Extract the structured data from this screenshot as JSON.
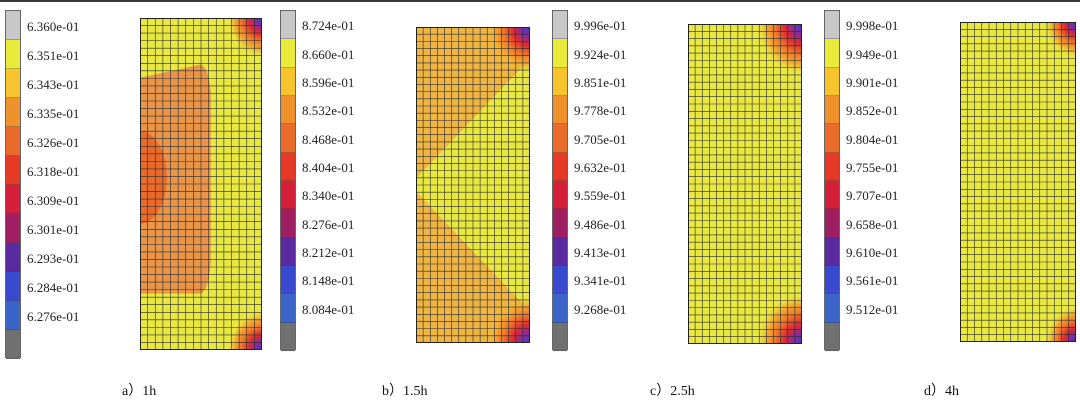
{
  "panels": [
    {
      "id": "a",
      "caption": "a）1h",
      "legend": [
        "6.360e-01",
        "6.351e-01",
        "6.343e-01",
        "6.335e-01",
        "6.326e-01",
        "6.318e-01",
        "6.309e-01",
        "6.301e-01",
        "6.293e-01",
        "6.284e-01",
        "6.276e-01"
      ],
      "pattern": "center-orange"
    },
    {
      "id": "b",
      "caption": "b）1.5h",
      "legend": [
        "8.724e-01",
        "8.660e-01",
        "8.596e-01",
        "8.532e-01",
        "8.468e-01",
        "8.404e-01",
        "8.340e-01",
        "8.276e-01",
        "8.212e-01",
        "8.148e-01",
        "8.084e-01"
      ],
      "pattern": "v-shape"
    },
    {
      "id": "c",
      "caption": "c）2.5h",
      "legend": [
        "9.996e-01",
        "9.924e-01",
        "9.851e-01",
        "9.778e-01",
        "9.705e-01",
        "9.632e-01",
        "9.559e-01",
        "9.486e-01",
        "9.413e-01",
        "9.341e-01",
        "9.268e-01"
      ],
      "pattern": "corners"
    },
    {
      "id": "d",
      "caption": "d）4h",
      "legend": [
        "9.998e-01",
        "9.949e-01",
        "9.901e-01",
        "9.852e-01",
        "9.804e-01",
        "9.755e-01",
        "9.707e-01",
        "9.658e-01",
        "9.610e-01",
        "9.561e-01",
        "9.512e-01"
      ],
      "pattern": "corners-small"
    }
  ],
  "colors": {
    "scale": [
      "#c8c8c8",
      "#eaea3a",
      "#f6c42c",
      "#f0922c",
      "#ea6a2a",
      "#e63a26",
      "#d41e3a",
      "#a01e62",
      "#5a2aa0",
      "#3a4ad0",
      "#3a64c8",
      "#707070"
    ],
    "mesh": "#2a2a2a",
    "yellow": "#e8e840",
    "orange": "#e9954a",
    "orange_light": "#eeb444"
  }
}
